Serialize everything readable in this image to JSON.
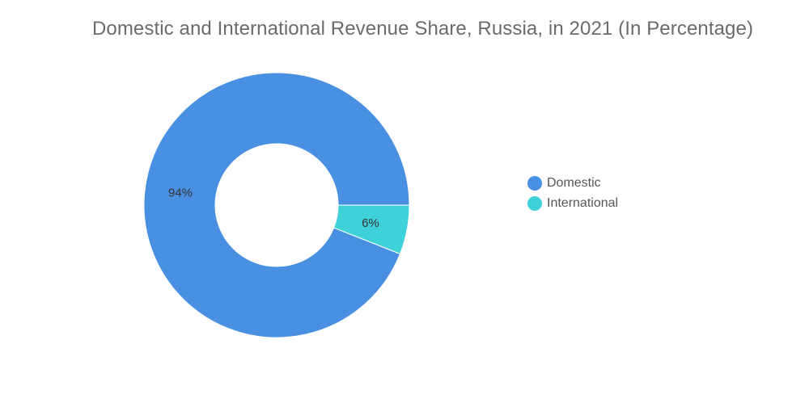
{
  "chart_data": {
    "type": "pie",
    "title": "Domestic and International Revenue Share, Russia, in 2021 (In Percentage)",
    "donut": true,
    "categories": [
      "Domestic",
      "International"
    ],
    "values": [
      94,
      6
    ],
    "value_labels": [
      "94%",
      "6%"
    ],
    "colors": [
      "#4a90e2",
      "#3fd1d9"
    ],
    "legend": {
      "position": "right",
      "entries": [
        "Domestic",
        "International"
      ]
    }
  }
}
